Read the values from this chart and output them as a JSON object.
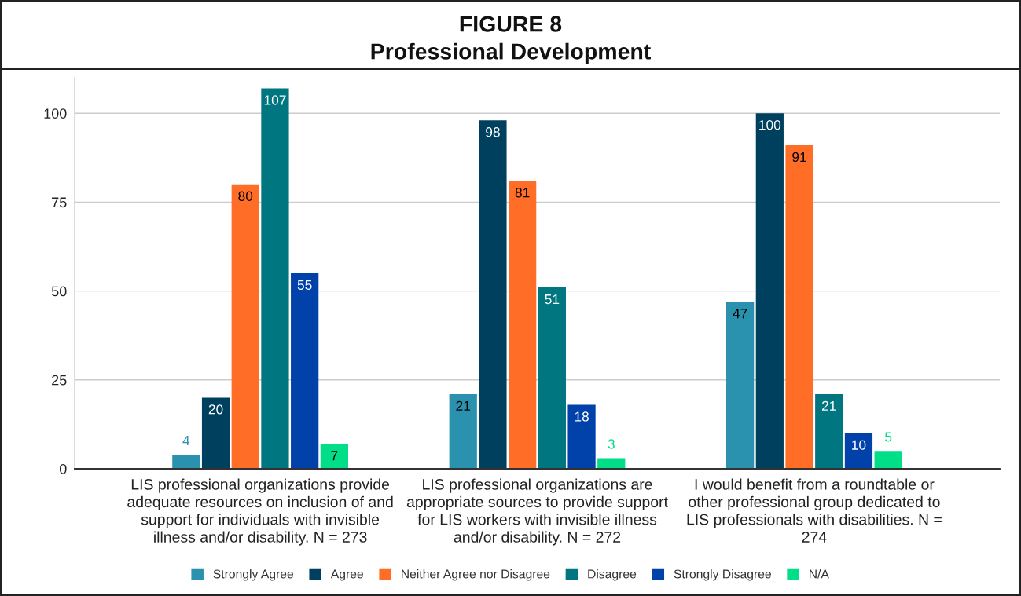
{
  "chart_data": {
    "type": "bar",
    "title": "FIGURE 8",
    "subtitle": "Professional Development",
    "categories": [
      "LIS professional organizations provide adequate resources on inclusion of and support for individuals with invisible illness and/or disability. N = 273",
      "LIS professional organizations are appropriate sources to provide support for LIS workers with invisible illness and/or disability. N = 272",
      "I would benefit from a roundtable or other professional group dedicated to LIS professionals with disabilities. N = 274"
    ],
    "series": [
      {
        "name": "Strongly Agree",
        "color": "#2a91ae",
        "values": [
          4,
          21,
          47
        ]
      },
      {
        "name": "Agree",
        "color": "#00405f",
        "values": [
          20,
          98,
          100
        ]
      },
      {
        "name": "Neither Agree nor Disagree",
        "color": "#ff6d27",
        "values": [
          80,
          81,
          91
        ]
      },
      {
        "name": "Disagree",
        "color": "#007680",
        "values": [
          107,
          51,
          21
        ]
      },
      {
        "name": "Strongly Disagree",
        "color": "#0041aa",
        "values": [
          55,
          18,
          10
        ]
      },
      {
        "name": "N/A",
        "color": "#00de88",
        "values": [
          7,
          3,
          5
        ]
      }
    ],
    "ylim": [
      0,
      110
    ],
    "yticks": [
      0,
      25,
      50,
      75,
      100
    ],
    "grid": "y",
    "legend": "bottom",
    "data_labels": true
  }
}
